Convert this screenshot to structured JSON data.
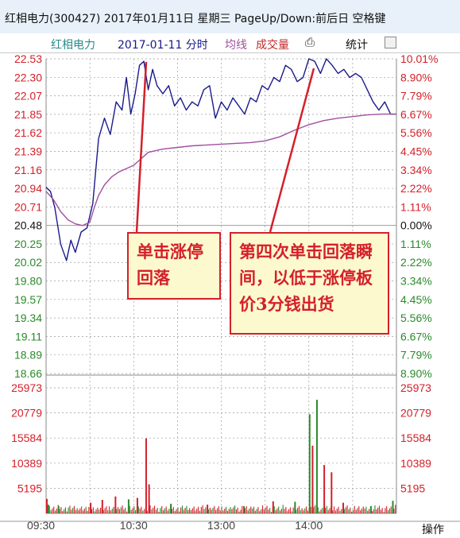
{
  "window": {
    "title": "红相电力(300427) 2017年01月11日 星期三 PageUp/Down:前后日 空格键"
  },
  "header": {
    "stock_name": "红相电力",
    "date_label": "2017-01-11 分时",
    "avg_label": "均线",
    "cost_label": "成交量",
    "stats_label": "统计"
  },
  "footer": {
    "operate_label": "操作"
  },
  "annotations": {
    "left_text": "单击涨停回落",
    "right_text": "第四次单击回落瞬间，以低于涨停板价3分钱出货"
  },
  "colors": {
    "price_line": "#1a1a8c",
    "avg_line": "#a050a0",
    "up": "#d4202a",
    "down": "#2a8a2a",
    "grid": "#9c9c9c",
    "arrow": "#d4202a"
  },
  "chart_data": {
    "type": "line",
    "x_ticks": [
      "09:30",
      "10:30",
      "13:00",
      "14:00"
    ],
    "price_ylim": [
      18.66,
      22.53
    ],
    "prev_close": 20.48,
    "price_ticks_up": [
      "22.53",
      "22.30",
      "22.07",
      "21.85",
      "21.62",
      "21.39",
      "21.16",
      "20.94",
      "20.71"
    ],
    "price_tick_mid": "20.48",
    "price_ticks_down": [
      "20.25",
      "20.02",
      "19.80",
      "19.57",
      "19.34",
      "19.11",
      "18.89",
      "18.66"
    ],
    "pct_ticks_up": [
      "10.01%",
      "8.90%",
      "7.79%",
      "6.67%",
      "5.56%",
      "4.45%",
      "3.34%",
      "2.22%",
      "1.11%"
    ],
    "pct_tick_mid": "0.00%",
    "pct_ticks_down": [
      "1.11%",
      "2.22%",
      "3.34%",
      "4.45%",
      "5.56%",
      "6.67%",
      "7.79%",
      "8.90%"
    ],
    "volume_ylim": [
      0,
      25973
    ],
    "volume_ticks": [
      "25973",
      "20779",
      "15584",
      "10389",
      "5195"
    ],
    "series": [
      {
        "name": "分时",
        "x": [
          0,
          3,
          6,
          10,
          14,
          17,
          20,
          24,
          28,
          32,
          36,
          40,
          44,
          48,
          52,
          55,
          58,
          61,
          64,
          67,
          70,
          73,
          76,
          80,
          84,
          88,
          92,
          96,
          100,
          104,
          108,
          112,
          116,
          120,
          124,
          128,
          132,
          136,
          140,
          144,
          148,
          152,
          156,
          160,
          164,
          168,
          172,
          176,
          180,
          184,
          188,
          192,
          196,
          200,
          204,
          208,
          212,
          216,
          220,
          224,
          228,
          232,
          236,
          240
        ],
        "values": [
          20.95,
          20.9,
          20.7,
          20.25,
          20.05,
          20.3,
          20.15,
          20.4,
          20.45,
          20.75,
          21.55,
          21.8,
          21.6,
          22.0,
          21.9,
          22.3,
          21.85,
          22.1,
          22.45,
          22.5,
          22.15,
          22.4,
          22.2,
          22.1,
          22.2,
          21.95,
          22.05,
          21.9,
          22.0,
          21.95,
          22.15,
          22.2,
          21.8,
          22.0,
          21.9,
          22.05,
          21.95,
          21.85,
          22.05,
          22.0,
          22.2,
          22.15,
          22.3,
          22.25,
          22.45,
          22.4,
          22.25,
          22.3,
          22.53,
          22.5,
          22.35,
          22.53,
          22.45,
          22.35,
          22.4,
          22.3,
          22.35,
          22.3,
          22.15,
          22.0,
          21.9,
          22.0,
          21.85,
          21.85
        ]
      },
      {
        "name": "均线",
        "x": [
          0,
          5,
          10,
          15,
          20,
          25,
          30,
          33,
          36,
          40,
          45,
          50,
          55,
          60,
          65,
          70,
          80,
          90,
          100,
          120,
          140,
          150,
          160,
          170,
          180,
          190,
          200,
          210,
          220,
          230,
          240
        ],
        "values": [
          20.9,
          20.8,
          20.65,
          20.55,
          20.5,
          20.48,
          20.52,
          20.7,
          20.85,
          20.98,
          21.08,
          21.14,
          21.18,
          21.22,
          21.3,
          21.38,
          21.42,
          21.44,
          21.46,
          21.48,
          21.5,
          21.52,
          21.57,
          21.65,
          21.72,
          21.77,
          21.8,
          21.82,
          21.84,
          21.85,
          21.85
        ]
      }
    ],
    "volume_spikes": [
      {
        "x": 0,
        "v": 3000,
        "dir": "up"
      },
      {
        "x": 1,
        "v": 1800,
        "dir": "down"
      },
      {
        "x": 8,
        "v": 1500,
        "dir": "down"
      },
      {
        "x": 30,
        "v": 2200,
        "dir": "up"
      },
      {
        "x": 38,
        "v": 2800,
        "dir": "up"
      },
      {
        "x": 47,
        "v": 3500,
        "dir": "up"
      },
      {
        "x": 56,
        "v": 2900,
        "dir": "down"
      },
      {
        "x": 62,
        "v": 3200,
        "dir": "up"
      },
      {
        "x": 68,
        "v": 15500,
        "dir": "up"
      },
      {
        "x": 70,
        "v": 6000,
        "dir": "up"
      },
      {
        "x": 85,
        "v": 2000,
        "dir": "down"
      },
      {
        "x": 110,
        "v": 1800,
        "dir": "up"
      },
      {
        "x": 135,
        "v": 1500,
        "dir": "down"
      },
      {
        "x": 155,
        "v": 2500,
        "dir": "up"
      },
      {
        "x": 170,
        "v": 2400,
        "dir": "down"
      },
      {
        "x": 180,
        "v": 20500,
        "dir": "down"
      },
      {
        "x": 182,
        "v": 14000,
        "dir": "up"
      },
      {
        "x": 185,
        "v": 23500,
        "dir": "down"
      },
      {
        "x": 190,
        "v": 10000,
        "dir": "up"
      },
      {
        "x": 195,
        "v": 8500,
        "dir": "up"
      },
      {
        "x": 203,
        "v": 2200,
        "dir": "up"
      },
      {
        "x": 222,
        "v": 1500,
        "dir": "down"
      },
      {
        "x": 237,
        "v": 2600,
        "dir": "down"
      }
    ]
  }
}
